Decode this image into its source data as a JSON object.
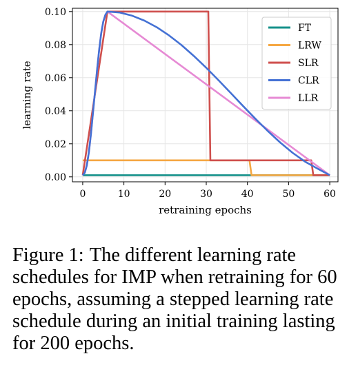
{
  "chart_data": {
    "type": "line",
    "title": "",
    "xlabel": "retraining epochs",
    "ylabel": "learning rate",
    "xlim": [
      -2.5,
      62
    ],
    "ylim": [
      -0.003,
      0.102
    ],
    "xticks": [
      0,
      10,
      20,
      30,
      40,
      50,
      60
    ],
    "yticks": [
      0.0,
      0.02,
      0.04,
      0.06,
      0.08,
      0.1
    ],
    "ytick_labels": [
      "0.00",
      "0.02",
      "0.04",
      "0.06",
      "0.08",
      "0.10"
    ],
    "grid": true,
    "legend_position": "top-right",
    "series": [
      {
        "name": "FT",
        "color": "#15918a",
        "x": [
          0,
          60
        ],
        "y": [
          0.001,
          0.001
        ]
      },
      {
        "name": "LRW",
        "color": "#f5a742",
        "x": [
          0,
          40.5,
          41,
          60
        ],
        "y": [
          0.01,
          0.01,
          0.001,
          0.001
        ]
      },
      {
        "name": "SLR",
        "color": "#cf4f4d",
        "x": [
          0,
          6,
          30.5,
          31,
          55.5,
          56,
          60
        ],
        "y": [
          0.001,
          0.1,
          0.1,
          0.01,
          0.01,
          0.001,
          0.001
        ]
      },
      {
        "name": "CLR",
        "color": "#4471d4",
        "x": [
          0,
          0.5,
          1,
          1.5,
          2,
          2.5,
          3,
          3.5,
          4,
          4.5,
          5,
          5.5,
          6,
          9,
          12,
          15,
          18,
          21,
          24,
          27,
          30,
          33,
          36,
          39,
          42,
          45,
          48,
          51,
          54,
          57,
          60
        ],
        "y": [
          0.001,
          0.0025,
          0.007,
          0.015,
          0.026,
          0.039,
          0.052,
          0.065,
          0.077,
          0.087,
          0.094,
          0.098,
          0.1,
          0.0994,
          0.0975,
          0.0945,
          0.0905,
          0.0855,
          0.0797,
          0.0731,
          0.066,
          0.0584,
          0.0506,
          0.0427,
          0.035,
          0.0276,
          0.0207,
          0.0145,
          0.0092,
          0.005,
          0.001
        ]
      },
      {
        "name": "LLR",
        "color": "#e68ad4",
        "x": [
          0,
          0.5,
          1,
          1.5,
          2,
          2.5,
          3,
          3.5,
          4,
          4.5,
          5,
          5.5,
          6,
          60
        ],
        "y": [
          0.001,
          0.0025,
          0.007,
          0.015,
          0.026,
          0.039,
          0.052,
          0.065,
          0.077,
          0.087,
          0.094,
          0.098,
          0.1,
          0.001
        ]
      }
    ]
  },
  "caption": {
    "lead": "Figure 1:",
    "text": "The different learning rate schedules for IMP when retraining for 60 epochs, assuming a stepped learning rate schedule during an initial training lasting for 200 epochs."
  }
}
